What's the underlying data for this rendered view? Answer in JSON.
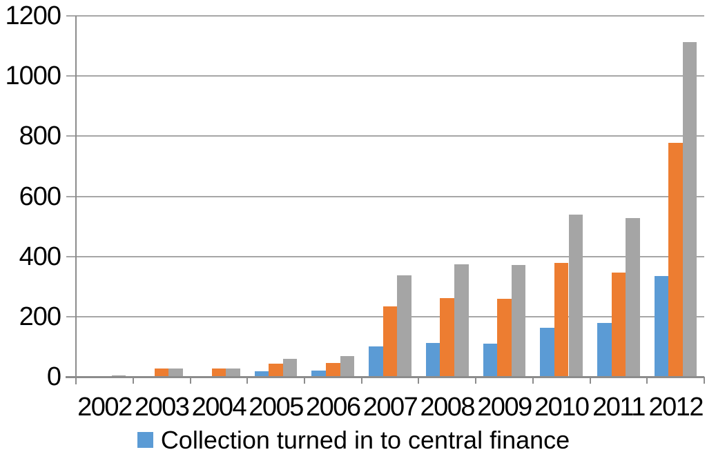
{
  "chart_data": {
    "type": "bar",
    "title": "",
    "categories": [
      "2002",
      "2003",
      "2004",
      "2005",
      "2006",
      "2007",
      "2008",
      "2009",
      "2010",
      "2011",
      "2012"
    ],
    "series": [
      {
        "name": "Collection turned in to central finance",
        "color": "#5B9BD5",
        "values": [
          0,
          0,
          0,
          18,
          21,
          101,
          113,
          110,
          162,
          178,
          334
        ]
      },
      {
        "name": "",
        "color": "#ED7D31",
        "values": [
          3,
          27,
          28,
          43,
          46,
          235,
          262,
          259,
          379,
          347,
          778
        ]
      },
      {
        "name": "",
        "color": "#A5A5A5",
        "values": [
          4,
          27,
          28,
          60,
          69,
          338,
          375,
          371,
          540,
          527,
          1113
        ]
      }
    ],
    "xlabel": "",
    "ylabel": "",
    "ylim": [
      0,
      1200
    ],
    "ytick_step": 200,
    "grid": true,
    "legend_position": "bottom"
  },
  "y_axis": {
    "tick_labels": [
      "1200",
      "1000",
      "800",
      "600",
      "400",
      "200",
      "0"
    ]
  },
  "x_axis": {
    "tick_labels": [
      "2002",
      "2003",
      "2004",
      "2005",
      "2006",
      "2007",
      "2008",
      "2009",
      "2010",
      "2011",
      "2012"
    ]
  },
  "legend": {
    "label": "Collection turned in to central finance",
    "marker_color": "#5B9BD5"
  },
  "colors": {
    "background": "#FFFFFF",
    "gridline": "#A6A6A6",
    "axis": "#8C8C8C",
    "text": "#000000",
    "bar_blue": "#5B9BD5",
    "bar_orange": "#ED7D31",
    "bar_gray": "#A5A5A5"
  }
}
